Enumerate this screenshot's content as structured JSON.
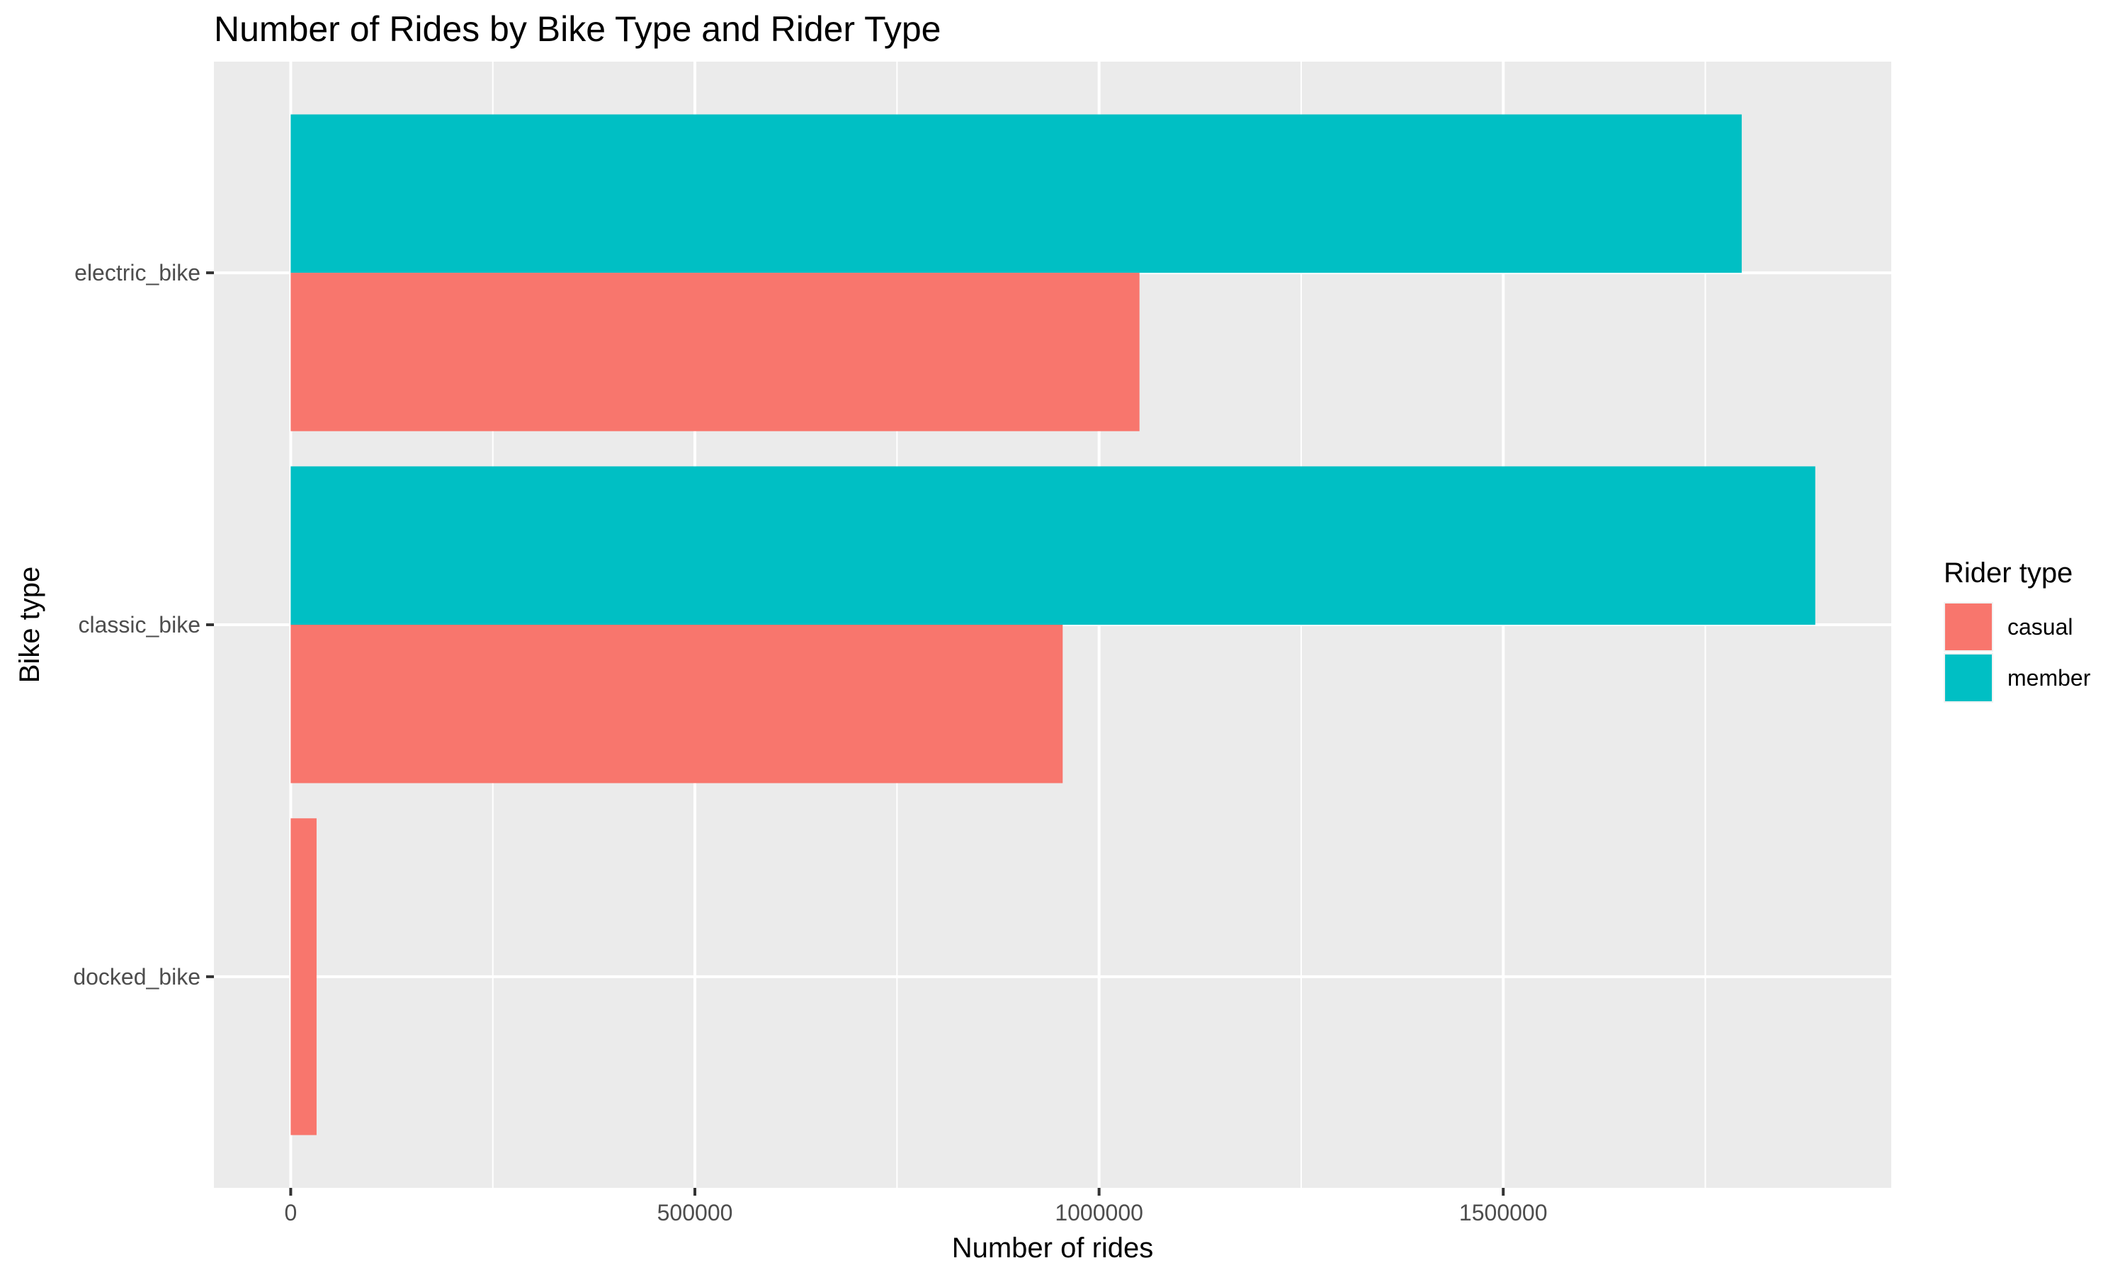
{
  "chart_data": {
    "type": "bar",
    "orientation": "horizontal",
    "title": "Number of Rides by Bike Type and Rider Type",
    "xlabel": "Number of rides",
    "ylabel": "Bike type",
    "categories": [
      "electric_bike",
      "classic_bike",
      "docked_bike"
    ],
    "series": [
      {
        "name": "casual",
        "color": "#F8766D",
        "values": [
          1050000,
          955000,
          32000
        ]
      },
      {
        "name": "member",
        "color": "#00BFC4",
        "values": [
          1795000,
          1886000,
          0
        ]
      }
    ],
    "xlim": [
      -95000,
      1980000
    ],
    "x_ticks": [
      0,
      500000,
      1000000,
      1500000
    ],
    "x_tick_labels": [
      "0",
      "500000",
      "1000000",
      "1500000"
    ],
    "grid": true,
    "panel_background": "#EBEBEB",
    "legend": {
      "title": "Rider type",
      "position": "right",
      "items": [
        "casual",
        "member"
      ]
    }
  }
}
